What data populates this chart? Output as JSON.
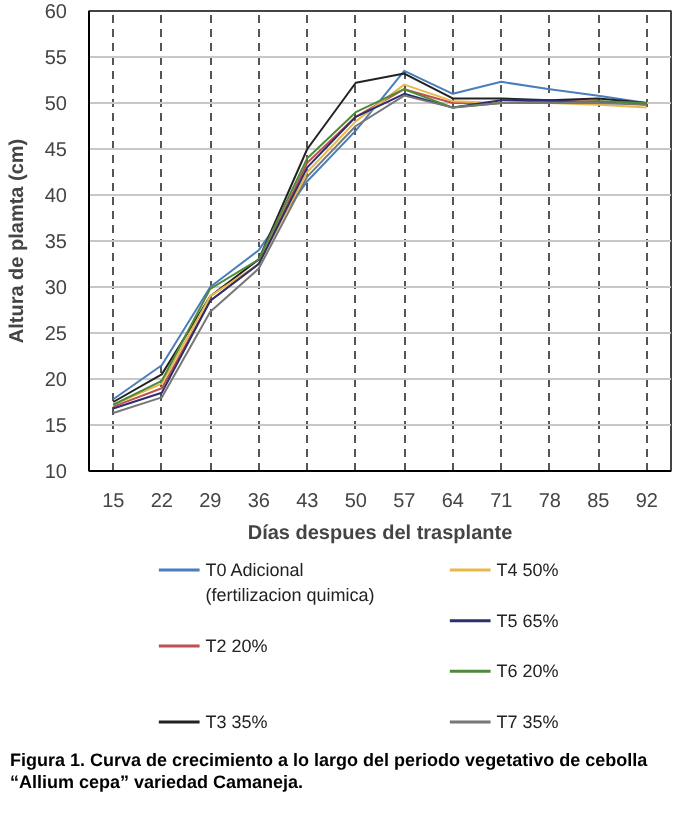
{
  "chart_data": {
    "type": "line",
    "xlabel": "Días despues del trasplante",
    "ylabel": "Altura de plamta (cm)",
    "categories": [
      "15",
      "22",
      "29",
      "36",
      "43",
      "50",
      "57",
      "64",
      "71",
      "78",
      "85",
      "92"
    ],
    "ylim": [
      10,
      60
    ],
    "yticks": [
      10,
      15,
      20,
      25,
      30,
      35,
      40,
      45,
      50,
      55,
      60
    ],
    "grid": true,
    "legend": "bottom",
    "marker": "none",
    "line_style": "solid",
    "series": [
      {
        "name": "T0 Adicional\n(fertilizacion quimica)",
        "color": "#4a7ebb",
        "values": [
          17.8,
          21.5,
          30,
          34,
          41.5,
          47,
          53.5,
          51,
          52.3,
          51.5,
          50.8,
          50
        ]
      },
      {
        "name": "T2  20%",
        "color": "#c0504d",
        "values": [
          17,
          19,
          28.5,
          32.5,
          43.5,
          48.5,
          51.5,
          50,
          50,
          50.2,
          50.2,
          49.8
        ]
      },
      {
        "name": "T3  35%",
        "color": "#222222",
        "values": [
          17.5,
          20.5,
          29,
          33,
          45,
          52.2,
          53.2,
          50.5,
          50.5,
          50.3,
          50.5,
          50
        ]
      },
      {
        "name": "T4  50%",
        "color": "#e6b94a",
        "values": [
          17.2,
          19.5,
          29,
          32.5,
          42.5,
          48,
          52,
          50.2,
          50,
          50,
          49.8,
          49.5
        ]
      },
      {
        "name": "T5  65%",
        "color": "#2c2f6e",
        "values": [
          16.8,
          18.5,
          28.5,
          32.5,
          43,
          48.5,
          51,
          49.5,
          50.3,
          50.3,
          50,
          50
        ]
      },
      {
        "name": "T6  20%",
        "color": "#4f8a3a",
        "values": [
          17.2,
          19.8,
          29.8,
          33,
          44,
          49,
          51.5,
          49.5,
          50,
          50,
          50.2,
          50
        ]
      },
      {
        "name": "T7  35%",
        "color": "#777777",
        "values": [
          16.3,
          18,
          27.3,
          32,
          42,
          47.5,
          50.8,
          49.5,
          50,
          50,
          50,
          49.8
        ]
      }
    ],
    "annotations": [
      "Figura 1. Curva de crecimiento a lo largo del periodo vegetativo de cebolla “Allium cepa” variedad Camaneja."
    ]
  }
}
